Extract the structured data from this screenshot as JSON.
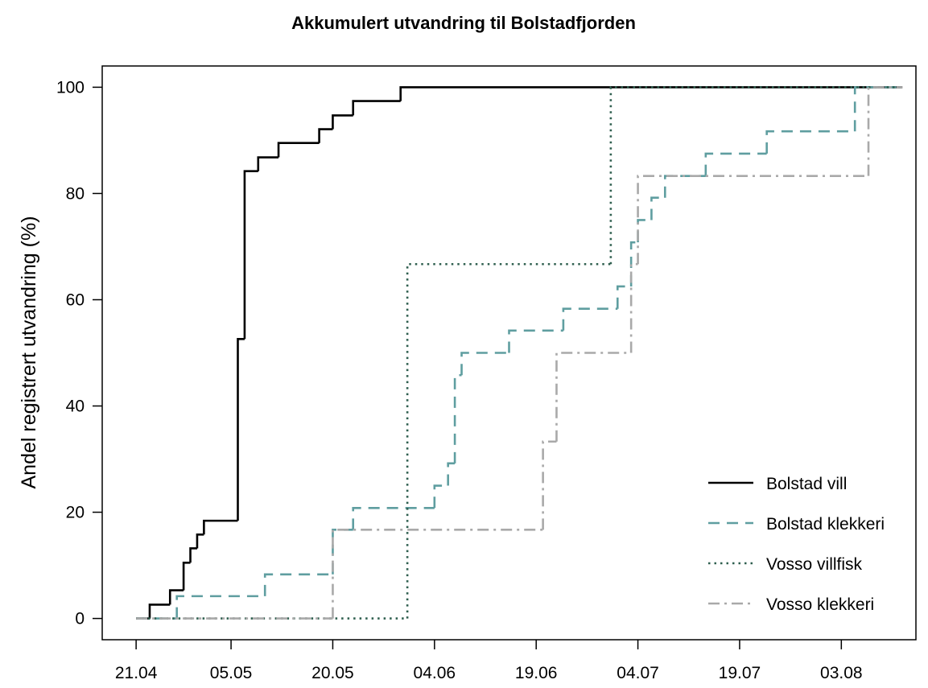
{
  "chart_data": {
    "type": "step",
    "title": "Akkumulert utvandring til Bolstadfjorden",
    "y_label": "Andel registrert utvandring (%)",
    "xlim": [
      "16.04",
      "14.08"
    ],
    "ylim": [
      -4,
      104
    ],
    "xticks": [
      "21.04",
      "05.05",
      "20.05",
      "04.06",
      "19.06",
      "04.07",
      "19.07",
      "03.08"
    ],
    "yticks": [
      0,
      20,
      40,
      60,
      80,
      100
    ],
    "legend": "bottom-right",
    "series": [
      {
        "name": "Bolstad vill",
        "color": "#000000",
        "dash": "solid",
        "x": [
          "21.04",
          "23.04",
          "26.04",
          "28.04",
          "29.04",
          "30.04",
          "01.05",
          "06.05",
          "07.05",
          "09.05",
          "12.05",
          "18.05",
          "20.05",
          "23.05",
          "30.05",
          "12.08"
        ],
        "values": [
          0,
          2.6,
          5.3,
          10.5,
          13.2,
          15.8,
          18.4,
          52.6,
          84.2,
          86.8,
          89.5,
          92.1,
          94.7,
          97.4,
          100,
          100
        ]
      },
      {
        "name": "Bolstad klekkeri",
        "color": "#5f9ea0",
        "dash": "dashed",
        "x": [
          "21.04",
          "27.04",
          "10.05",
          "20.05",
          "23.05",
          "04.06",
          "06.06",
          "07.06",
          "08.06",
          "15.06",
          "23.06",
          "01.07",
          "03.07",
          "04.07",
          "06.07",
          "08.07",
          "14.07",
          "23.07",
          "05.08",
          "12.08"
        ],
        "values": [
          0,
          4.2,
          8.3,
          16.7,
          20.8,
          25,
          29.2,
          45.8,
          50,
          54.2,
          58.3,
          62.5,
          70.8,
          75,
          79.2,
          83.3,
          87.5,
          91.7,
          100,
          100
        ]
      },
      {
        "name": "Vosso villfisk",
        "color": "#2f5f4f",
        "dash": "dotted",
        "x": [
          "21.04",
          "31.05",
          "30.06",
          "12.08"
        ],
        "values": [
          0,
          66.7,
          100,
          100
        ]
      },
      {
        "name": "Vosso klekkeri",
        "color": "#a9a9a9",
        "dash": "dotdash",
        "x": [
          "21.04",
          "20.05",
          "20.06",
          "22.06",
          "03.07",
          "04.07",
          "07.08",
          "12.08"
        ],
        "values": [
          0,
          16.7,
          33.3,
          50,
          66.7,
          83.3,
          100,
          100
        ]
      }
    ]
  }
}
